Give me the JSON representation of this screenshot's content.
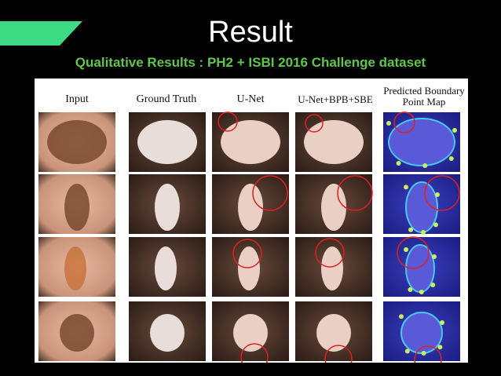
{
  "header": {
    "title": "Result",
    "subtitle": "Qualitative Results : PH2 + ISBI 2016 Challenge dataset"
  },
  "figure": {
    "columns": [
      "Input",
      "Ground Truth",
      "U-Net",
      "U-Net+BPB+SBE",
      "Predicted Boundary Point Map"
    ]
  }
}
